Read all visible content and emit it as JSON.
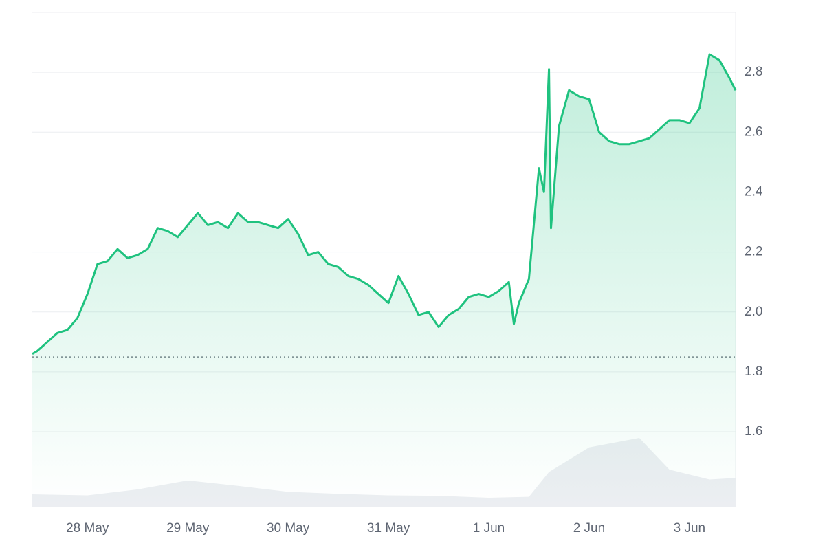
{
  "chart_data": {
    "type": "line",
    "xlim": [
      0.45,
      7.46
    ],
    "xticks": [
      {
        "value": 1,
        "label": "28 May"
      },
      {
        "value": 2,
        "label": "29 May"
      },
      {
        "value": 3,
        "label": "30 May"
      },
      {
        "value": 4,
        "label": "31 May"
      },
      {
        "value": 5,
        "label": "1 Jun"
      },
      {
        "value": 6,
        "label": "2 Jun"
      },
      {
        "value": 7,
        "label": "3 Jun"
      }
    ],
    "ylim": [
      1.35,
      3.0
    ],
    "yticks": [
      1.6,
      1.8,
      {
        "value": 2,
        "label": "2.0"
      },
      2.2,
      2.4,
      2.6,
      2.8
    ],
    "y2lim": [
      0,
      100
    ],
    "grid": true,
    "baseline": 1.85,
    "series": [
      {
        "name": "price",
        "color": "#1fc27f",
        "x": [
          0.45,
          0.5,
          0.6,
          0.7,
          0.8,
          0.9,
          1.0,
          1.1,
          1.2,
          1.3,
          1.4,
          1.5,
          1.6,
          1.7,
          1.8,
          1.9,
          2.0,
          2.1,
          2.2,
          2.3,
          2.4,
          2.5,
          2.6,
          2.7,
          2.8,
          2.9,
          3.0,
          3.1,
          3.2,
          3.3,
          3.4,
          3.5,
          3.6,
          3.7,
          3.8,
          3.9,
          4.0,
          4.1,
          4.2,
          4.3,
          4.4,
          4.5,
          4.6,
          4.7,
          4.8,
          4.9,
          5.0,
          5.1,
          5.2,
          5.25,
          5.3,
          5.4,
          5.5,
          5.55,
          5.6,
          5.62,
          5.7,
          5.8,
          5.9,
          6.0,
          6.1,
          6.2,
          6.3,
          6.4,
          6.5,
          6.6,
          6.7,
          6.8,
          6.9,
          7.0,
          7.1,
          7.2,
          7.3,
          7.4,
          7.46
        ],
        "values": [
          1.86,
          1.87,
          1.9,
          1.93,
          1.94,
          1.98,
          2.06,
          2.16,
          2.17,
          2.21,
          2.18,
          2.19,
          2.21,
          2.28,
          2.27,
          2.25,
          2.29,
          2.33,
          2.29,
          2.3,
          2.28,
          2.33,
          2.3,
          2.3,
          2.29,
          2.28,
          2.31,
          2.26,
          2.19,
          2.2,
          2.16,
          2.15,
          2.12,
          2.11,
          2.09,
          2.06,
          2.03,
          2.12,
          2.06,
          1.99,
          2.0,
          1.95,
          1.99,
          2.01,
          2.05,
          2.06,
          2.05,
          2.07,
          2.1,
          1.96,
          2.03,
          2.11,
          2.48,
          2.4,
          2.81,
          2.28,
          2.62,
          2.74,
          2.72,
          2.71,
          2.6,
          2.57,
          2.56,
          2.56,
          2.57,
          2.58,
          2.61,
          2.64,
          2.64,
          2.63,
          2.68,
          2.86,
          2.84,
          2.78,
          2.74
        ]
      },
      {
        "name": "volume",
        "color": "#eceef2",
        "axis": "y2",
        "x": [
          0.45,
          1.0,
          1.5,
          2.0,
          2.5,
          3.0,
          3.5,
          4.0,
          4.5,
          5.0,
          5.4,
          5.6,
          6.0,
          6.5,
          6.8,
          7.2,
          7.46
        ],
        "values": [
          2.5,
          2.3,
          3.5,
          5.3,
          4.2,
          3.0,
          2.6,
          2.3,
          2.2,
          1.8,
          2.0,
          7.0,
          12.0,
          13.9,
          7.5,
          5.5,
          5.8
        ]
      }
    ]
  }
}
